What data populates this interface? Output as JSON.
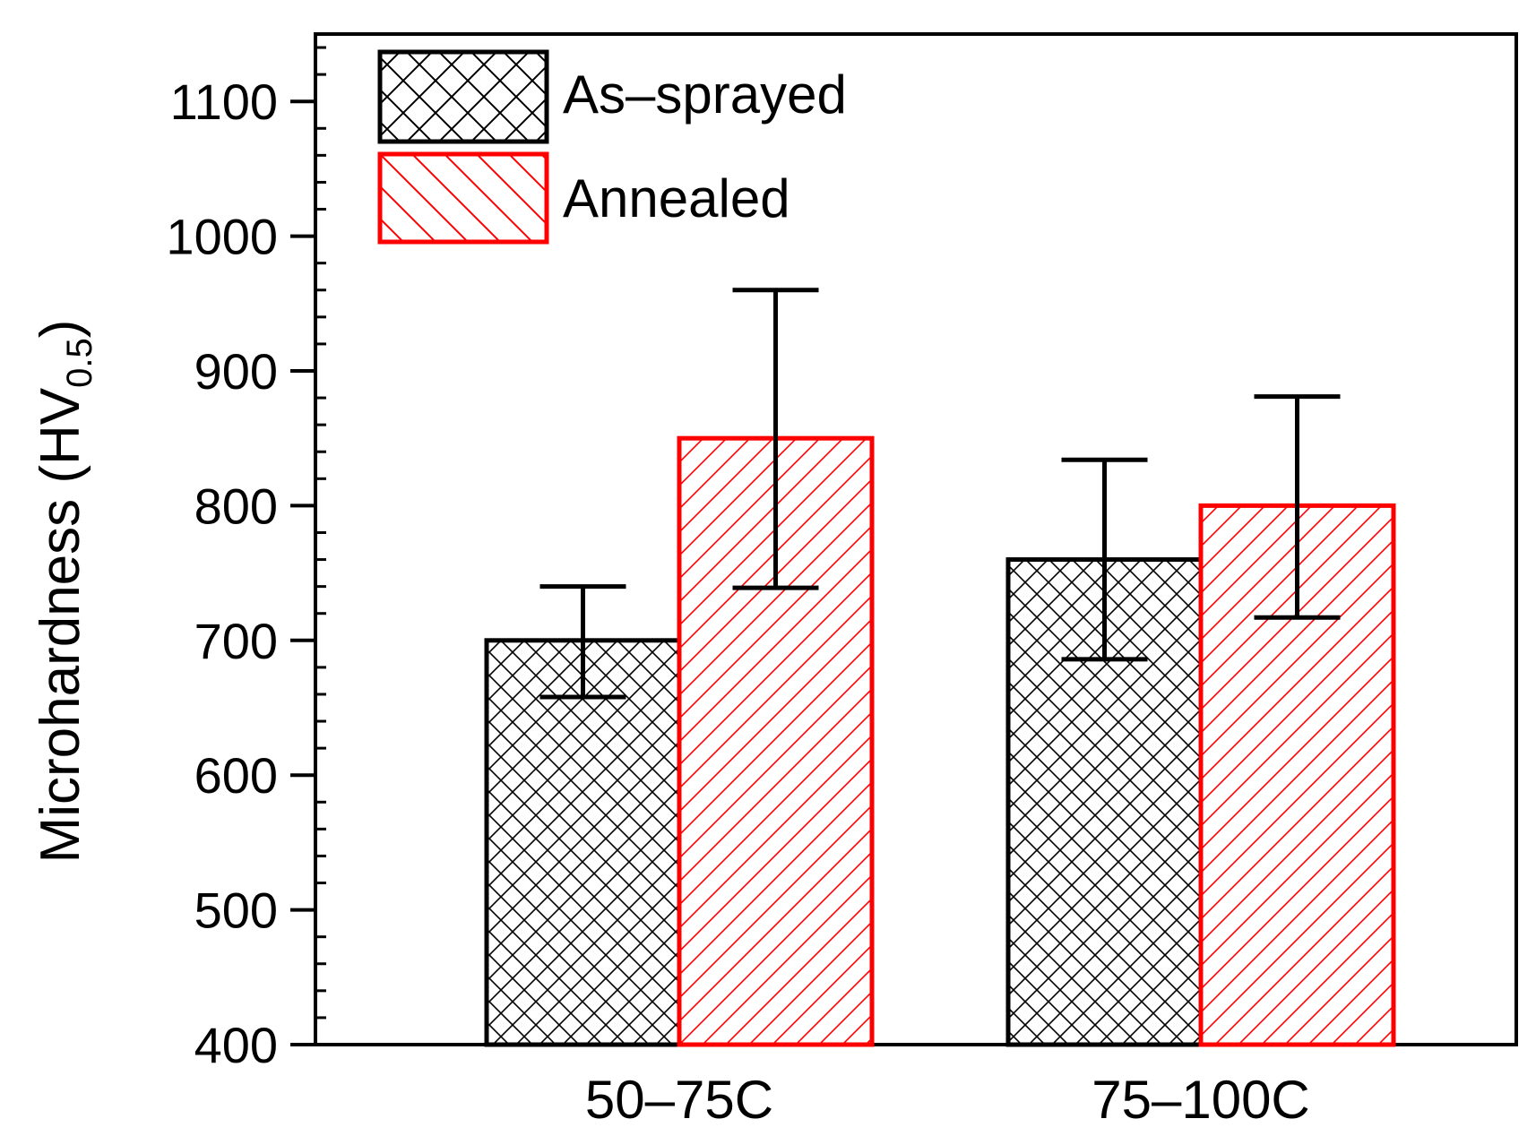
{
  "chart_data": {
    "type": "bar",
    "title": "",
    "xlabel": "",
    "ylabel": "Microhardness (HV",
    "ylabel_subscript": "0.5",
    "ylabel_close": ")",
    "categories": [
      "50–75C",
      "75–100C"
    ],
    "ylim": [
      400,
      1150
    ],
    "yticks": [
      400,
      500,
      600,
      700,
      800,
      900,
      1000,
      1100
    ],
    "minor_tick_step": 20,
    "legend_position": "top-left",
    "series": [
      {
        "name": "As–sprayed",
        "pattern": "crosshatch",
        "color": "#000000",
        "values": [
          700,
          760
        ],
        "error_low": [
          658,
          686
        ],
        "error_high": [
          740,
          834
        ]
      },
      {
        "name": "Annealed",
        "pattern": "diagonal",
        "color": "#ff0000",
        "values": [
          850,
          800
        ],
        "error_low": [
          739,
          717
        ],
        "error_high": [
          960,
          881
        ]
      }
    ]
  }
}
